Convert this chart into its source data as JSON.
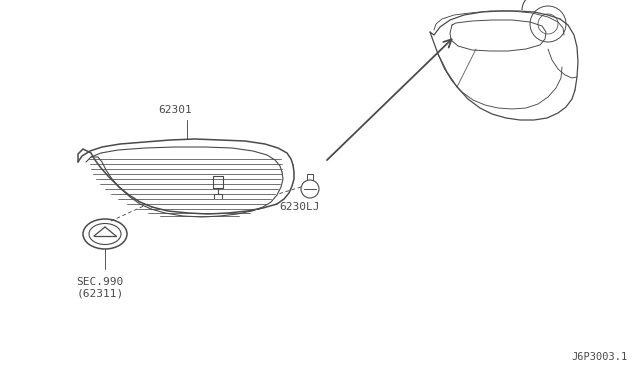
{
  "bg_color": "#ffffff",
  "line_color": "#4a4a4a",
  "label_color": "#4a4a4a",
  "labels": {
    "part_main": "62301",
    "part_clip": "6230LJ",
    "part_emblem": "SEC.990\n(62311)",
    "diagram_id": "J6P3003.1"
  },
  "figsize": [
    6.4,
    3.72
  ],
  "dpi": 100
}
